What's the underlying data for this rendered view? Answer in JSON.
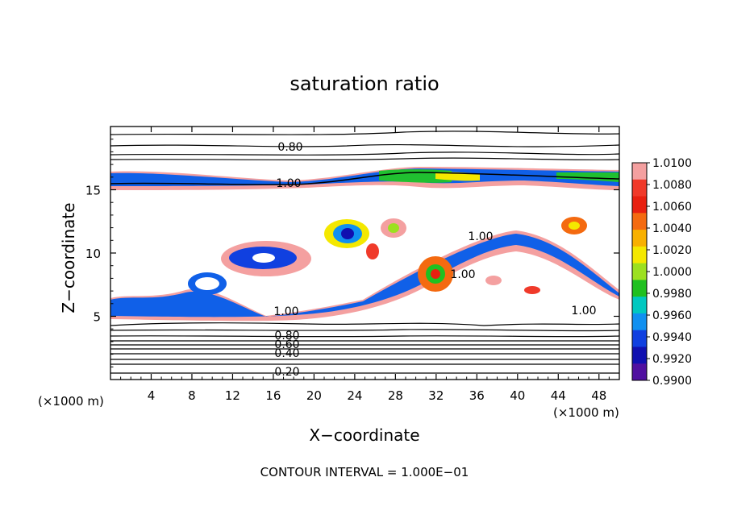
{
  "chart_data": {
    "type": "heatmap",
    "title": "saturation ratio",
    "xlabel": "X−coordinate",
    "ylabel": "Z−coordinate",
    "x_unit_left": "(×1000 m)",
    "x_unit_right": "(×1000 m)",
    "footer": "CONTOUR INTERVAL = 1.000E−01",
    "xlim": [
      0,
      50
    ],
    "ylim": [
      0,
      20
    ],
    "x_ticks": [
      4,
      8,
      12,
      16,
      20,
      24,
      28,
      32,
      36,
      40,
      44,
      48
    ],
    "x_tick_labels": [
      "4",
      "8",
      "12",
      "16",
      "20",
      "24",
      "28",
      "32",
      "36",
      "40",
      "44",
      "48"
    ],
    "y_ticks": [
      5,
      10,
      15
    ],
    "y_tick_labels": [
      "5",
      "10",
      "15"
    ],
    "contour_labels": [
      "0.80",
      "1.00",
      "1.00",
      "1.00",
      "1.00",
      "1.00",
      "0.80",
      "0.60",
      "0.40",
      "0.20"
    ],
    "colorbar": {
      "levels": [
        "1.0100",
        "1.0080",
        "1.0060",
        "1.0040",
        "1.0020",
        "1.0000",
        "0.9980",
        "0.9960",
        "0.9940",
        "0.9920",
        "0.9900"
      ],
      "colors": [
        "#f4a0a0",
        "#f03a2a",
        "#e82010",
        "#f46a10",
        "#f8b000",
        "#f4e800",
        "#9ce020",
        "#20c020",
        "#00c8c0",
        "#1090f0",
        "#1040e0",
        "#1010b0",
        "#5010a0"
      ]
    },
    "grid": false
  }
}
